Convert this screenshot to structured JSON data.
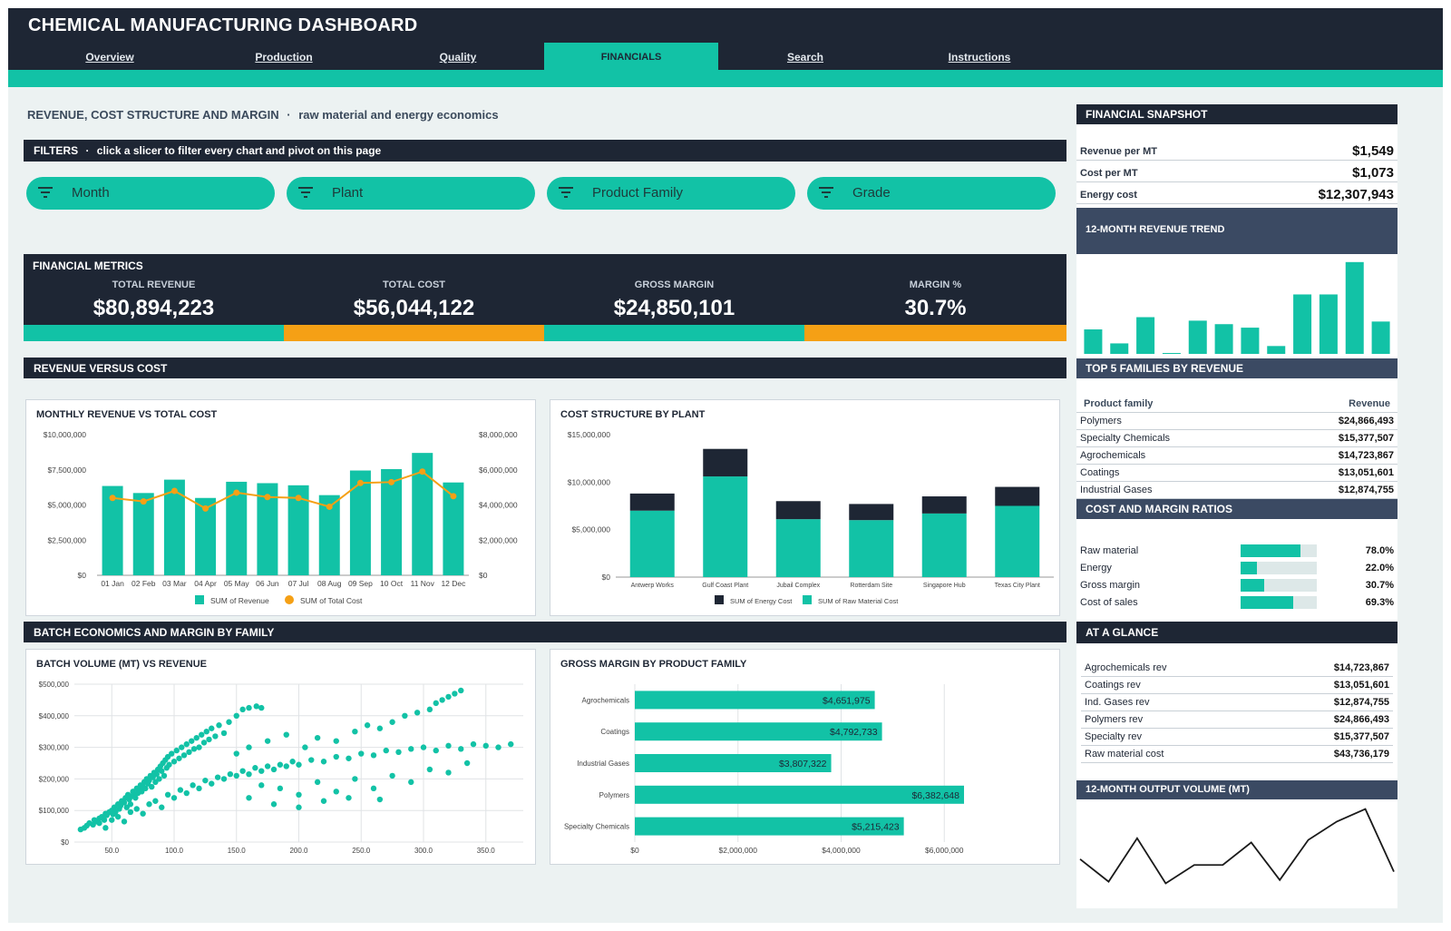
{
  "app": {
    "title": "CHEMICAL MANUFACTURING DASHBOARD"
  },
  "nav": {
    "tabs": [
      {
        "label": "Overview",
        "active": false
      },
      {
        "label": "Production",
        "active": false
      },
      {
        "label": "Quality",
        "active": false
      },
      {
        "label": "FINANCIALS",
        "active": true
      },
      {
        "label": "Search",
        "active": false
      },
      {
        "label": "Instructions",
        "active": false
      }
    ]
  },
  "page": {
    "title": "REVENUE, COST STRUCTURE AND MARGIN",
    "separator": "·",
    "subtitle": "raw material and energy economics"
  },
  "filters": {
    "header": "FILTERS",
    "hint": "click a slicer to filter every chart and pivot on this page",
    "slicers": [
      "Month",
      "Plant",
      "Product Family",
      "Grade"
    ],
    "icon": "filter-icon"
  },
  "metrics": {
    "header": "FINANCIAL METRICS",
    "items": [
      {
        "label": "TOTAL REVENUE",
        "value": "$80,894,223",
        "bar_color": "#12c2a6"
      },
      {
        "label": "TOTAL COST",
        "value": "$56,044,122",
        "bar_color": "#f5a015"
      },
      {
        "label": "GROSS MARGIN",
        "value": "$24,850,101",
        "bar_color": "#12c2a6"
      },
      {
        "label": "MARGIN %",
        "value": "30.7%",
        "bar_color": "#f5a015"
      }
    ]
  },
  "sections": {
    "revenue_vs_cost": "REVENUE VERSUS COST",
    "batch_economics": "BATCH ECONOMICS AND MARGIN BY FAMILY"
  },
  "colors": {
    "teal": "#12c2a6",
    "navy": "#1e2634",
    "orange": "#f5a015",
    "track": "#dde8e8"
  },
  "chart_data": [
    {
      "id": "monthly",
      "type": "bar",
      "title": "MONTHLY REVENUE VS TOTAL COST",
      "categories": [
        "01 Jan",
        "02 Feb",
        "03 Mar",
        "04 Apr",
        "05 May",
        "06 Jun",
        "07 Jul",
        "08 Aug",
        "09 Sep",
        "10 Oct",
        "11 Nov",
        "12 Dec"
      ],
      "series": [
        {
          "name": "SUM of Revenue",
          "kind": "bar",
          "axis": "left",
          "values": [
            6350000,
            5850000,
            6800000,
            5500000,
            6650000,
            6550000,
            6400000,
            5700000,
            7450000,
            7550000,
            8700000,
            6600000
          ]
        },
        {
          "name": "SUM of Total Cost",
          "kind": "line",
          "axis": "right",
          "values": [
            4400000,
            4200000,
            4800000,
            3800000,
            4700000,
            4450000,
            4400000,
            3900000,
            5250000,
            5300000,
            5900000,
            4500000
          ]
        }
      ],
      "ylim_left": [
        0,
        10000000
      ],
      "ylim_right": [
        0,
        8000000
      ],
      "yticks_left": [
        "$0",
        "$2,500,000",
        "$5,000,000",
        "$7,500,000",
        "$10,000,000"
      ],
      "yticks_right": [
        "$0",
        "$2,000,000",
        "$4,000,000",
        "$6,000,000",
        "$8,000,000"
      ],
      "legend": "bottom",
      "grid": false
    },
    {
      "id": "plant",
      "type": "bar",
      "stacked": true,
      "title": "COST STRUCTURE BY PLANT",
      "categories": [
        "Antwerp Works",
        "Gulf Coast Plant",
        "Jubail Complex",
        "Rotterdam Site",
        "Singapore Hub",
        "Texas City Plant"
      ],
      "series": [
        {
          "name": "SUM of Raw Material Cost",
          "values": [
            7000000,
            10600000,
            6100000,
            6000000,
            6700000,
            7500000
          ]
        },
        {
          "name": "SUM of Energy Cost",
          "values": [
            1800000,
            2900000,
            1900000,
            1700000,
            1800000,
            2000000
          ]
        }
      ],
      "ylim": [
        0,
        15000000
      ],
      "yticks": [
        "$0",
        "$5,000,000",
        "$10,000,000",
        "$15,000,000"
      ],
      "legend": "bottom",
      "grid": false
    },
    {
      "id": "scatter",
      "type": "scatter",
      "title": "BATCH VOLUME (MT) VS REVENUE",
      "xlim": [
        20,
        380
      ],
      "ylim": [
        0,
        500000
      ],
      "xticks": [
        "50.0",
        "100.0",
        "150.0",
        "200.0",
        "250.0",
        "300.0",
        "350.0"
      ],
      "yticks": [
        "$0",
        "$100,000",
        "$200,000",
        "$300,000",
        "$400,000",
        "$500,000"
      ],
      "grid": true,
      "points": [
        [
          25,
          40000
        ],
        [
          28,
          45000
        ],
        [
          30,
          52000
        ],
        [
          32,
          60000
        ],
        [
          35,
          55000
        ],
        [
          36,
          70000
        ],
        [
          38,
          65000
        ],
        [
          40,
          75000
        ],
        [
          42,
          80000
        ],
        [
          44,
          70000
        ],
        [
          45,
          90000
        ],
        [
          46,
          85000
        ],
        [
          48,
          95000
        ],
        [
          50,
          100000
        ],
        [
          51,
          88000
        ],
        [
          52,
          110000
        ],
        [
          53,
          95000
        ],
        [
          55,
          120000
        ],
        [
          56,
          105000
        ],
        [
          57,
          115000
        ],
        [
          58,
          130000
        ],
        [
          60,
          125000
        ],
        [
          61,
          140000
        ],
        [
          62,
          110000
        ],
        [
          63,
          150000
        ],
        [
          64,
          135000
        ],
        [
          65,
          120000
        ],
        [
          66,
          145000
        ],
        [
          67,
          160000
        ],
        [
          68,
          150000
        ],
        [
          69,
          140000
        ],
        [
          70,
          170000
        ],
        [
          71,
          155000
        ],
        [
          72,
          165000
        ],
        [
          73,
          180000
        ],
        [
          74,
          160000
        ],
        [
          75,
          175000
        ],
        [
          76,
          190000
        ],
        [
          77,
          170000
        ],
        [
          78,
          200000
        ],
        [
          79,
          185000
        ],
        [
          80,
          195000
        ],
        [
          81,
          210000
        ],
        [
          82,
          175000
        ],
        [
          83,
          205000
        ],
        [
          84,
          220000
        ],
        [
          85,
          190000
        ],
        [
          86,
          215000
        ],
        [
          87,
          230000
        ],
        [
          88,
          200000
        ],
        [
          89,
          240000
        ],
        [
          90,
          225000
        ],
        [
          91,
          250000
        ],
        [
          92,
          210000
        ],
        [
          93,
          260000
        ],
        [
          94,
          235000
        ],
        [
          95,
          270000
        ],
        [
          96,
          245000
        ],
        [
          98,
          280000
        ],
        [
          100,
          255000
        ],
        [
          102,
          290000
        ],
        [
          104,
          265000
        ],
        [
          106,
          300000
        ],
        [
          108,
          275000
        ],
        [
          110,
          310000
        ],
        [
          112,
          285000
        ],
        [
          114,
          320000
        ],
        [
          116,
          295000
        ],
        [
          118,
          330000
        ],
        [
          120,
          300000
        ],
        [
          122,
          340000
        ],
        [
          124,
          315000
        ],
        [
          126,
          350000
        ],
        [
          128,
          325000
        ],
        [
          130,
          360000
        ],
        [
          133,
          335000
        ],
        [
          136,
          370000
        ],
        [
          140,
          345000
        ],
        [
          144,
          380000
        ],
        [
          150,
          400000
        ],
        [
          155,
          420000
        ],
        [
          160,
          425000
        ],
        [
          166,
          430000
        ],
        [
          170,
          425000
        ],
        [
          40,
          60000
        ],
        [
          45,
          45000
        ],
        [
          50,
          70000
        ],
        [
          55,
          80000
        ],
        [
          60,
          65000
        ],
        [
          65,
          95000
        ],
        [
          70,
          105000
        ],
        [
          75,
          90000
        ],
        [
          80,
          120000
        ],
        [
          85,
          130000
        ],
        [
          90,
          110000
        ],
        [
          95,
          150000
        ],
        [
          100,
          140000
        ],
        [
          105,
          165000
        ],
        [
          110,
          155000
        ],
        [
          115,
          180000
        ],
        [
          120,
          170000
        ],
        [
          125,
          195000
        ],
        [
          130,
          185000
        ],
        [
          135,
          205000
        ],
        [
          140,
          200000
        ],
        [
          145,
          215000
        ],
        [
          150,
          210000
        ],
        [
          155,
          225000
        ],
        [
          160,
          215000
        ],
        [
          165,
          235000
        ],
        [
          170,
          225000
        ],
        [
          175,
          240000
        ],
        [
          180,
          230000
        ],
        [
          185,
          245000
        ],
        [
          190,
          240000
        ],
        [
          195,
          255000
        ],
        [
          200,
          245000
        ],
        [
          210,
          260000
        ],
        [
          220,
          255000
        ],
        [
          230,
          270000
        ],
        [
          240,
          265000
        ],
        [
          250,
          280000
        ],
        [
          260,
          275000
        ],
        [
          270,
          290000
        ],
        [
          280,
          285000
        ],
        [
          290,
          295000
        ],
        [
          300,
          300000
        ],
        [
          310,
          290000
        ],
        [
          320,
          305000
        ],
        [
          330,
          295000
        ],
        [
          340,
          310000
        ],
        [
          350,
          305000
        ],
        [
          360,
          300000
        ],
        [
          370,
          310000
        ],
        [
          150,
          280000
        ],
        [
          160,
          300000
        ],
        [
          175,
          320000
        ],
        [
          190,
          340000
        ],
        [
          205,
          300000
        ],
        [
          215,
          330000
        ],
        [
          230,
          320000
        ],
        [
          245,
          350000
        ],
        [
          255,
          370000
        ],
        [
          265,
          360000
        ],
        [
          275,
          380000
        ],
        [
          285,
          400000
        ],
        [
          295,
          410000
        ],
        [
          305,
          420000
        ],
        [
          310,
          440000
        ],
        [
          315,
          450000
        ],
        [
          320,
          460000
        ],
        [
          325,
          470000
        ],
        [
          330,
          480000
        ],
        [
          170,
          180000
        ],
        [
          185,
          170000
        ],
        [
          200,
          150000
        ],
        [
          215,
          190000
        ],
        [
          230,
          160000
        ],
        [
          245,
          200000
        ],
        [
          260,
          170000
        ],
        [
          275,
          210000
        ],
        [
          290,
          190000
        ],
        [
          305,
          230000
        ],
        [
          320,
          220000
        ],
        [
          335,
          250000
        ],
        [
          160,
          140000
        ],
        [
          180,
          120000
        ],
        [
          200,
          110000
        ],
        [
          220,
          130000
        ],
        [
          240,
          140000
        ],
        [
          265,
          135000
        ]
      ]
    },
    {
      "id": "margin",
      "type": "bar",
      "orientation": "horizontal",
      "title": "GROSS MARGIN BY PRODUCT FAMILY",
      "categories": [
        "Agrochemicals",
        "Coatings",
        "Industrial Gases",
        "Polymers",
        "Specialty Chemicals"
      ],
      "values": [
        4651975,
        4792733,
        3807322,
        6382648,
        5215423
      ],
      "data_labels": [
        "$4,651,975",
        "$4,792,733",
        "$3,807,322",
        "$6,382,648",
        "$5,215,423"
      ],
      "xlim": [
        0,
        8000000
      ],
      "xticks": [
        "$0",
        "$2,000,000",
        "$4,000,000",
        "$6,000,000"
      ],
      "grid": true
    },
    {
      "id": "trend",
      "type": "bar",
      "title": "12-MONTH REVENUE TREND",
      "values": [
        28,
        12,
        42,
        1,
        38,
        34,
        30,
        9,
        68,
        68,
        105,
        37
      ],
      "ylim": [
        0,
        110
      ]
    },
    {
      "id": "output",
      "type": "line",
      "title": "12-MONTH OUTPUT VOLUME (MT)",
      "values": [
        35,
        8,
        60,
        6,
        28,
        28,
        55,
        10,
        58,
        80,
        95,
        20
      ],
      "ylim": [
        0,
        100
      ]
    }
  ],
  "sidebar": {
    "snapshot": {
      "title": "FINANCIAL SNAPSHOT",
      "rows": [
        {
          "label": "Revenue per MT",
          "value": "$1,549"
        },
        {
          "label": "Cost per MT",
          "value": "$1,073"
        },
        {
          "label": "Energy cost",
          "value": "$12,307,943"
        }
      ]
    },
    "trend_title": "12-MONTH REVENUE TREND",
    "top5": {
      "title": "TOP 5 FAMILIES BY REVENUE",
      "col_family": "Product family",
      "col_revenue": "Revenue",
      "rows": [
        {
          "family": "Polymers",
          "revenue": "$24,866,493"
        },
        {
          "family": "Specialty Chemicals",
          "revenue": "$15,377,507"
        },
        {
          "family": "Agrochemicals",
          "revenue": "$14,723,867"
        },
        {
          "family": "Coatings",
          "revenue": "$13,051,601"
        },
        {
          "family": "Industrial Gases",
          "revenue": "$12,874,755"
        }
      ]
    },
    "ratios": {
      "title": "COST AND MARGIN RATIOS",
      "rows": [
        {
          "label": "Raw material",
          "value": "78.0%",
          "fraction": 0.78
        },
        {
          "label": "Energy",
          "value": "22.0%",
          "fraction": 0.22
        },
        {
          "label": "Gross margin",
          "value": "30.7%",
          "fraction": 0.307
        },
        {
          "label": "Cost of sales",
          "value": "69.3%",
          "fraction": 0.693
        }
      ]
    },
    "glance": {
      "title": "AT A GLANCE",
      "rows": [
        {
          "label": "Agrochemicals rev",
          "value": "$14,723,867"
        },
        {
          "label": "Coatings rev",
          "value": "$13,051,601"
        },
        {
          "label": "Ind. Gases rev",
          "value": "$12,874,755"
        },
        {
          "label": "Polymers rev",
          "value": "$24,866,493"
        },
        {
          "label": "Specialty rev",
          "value": "$15,377,507"
        },
        {
          "label": "Raw material cost",
          "value": "$43,736,179"
        }
      ]
    },
    "output_title": "12-MONTH OUTPUT VOLUME (MT)"
  }
}
